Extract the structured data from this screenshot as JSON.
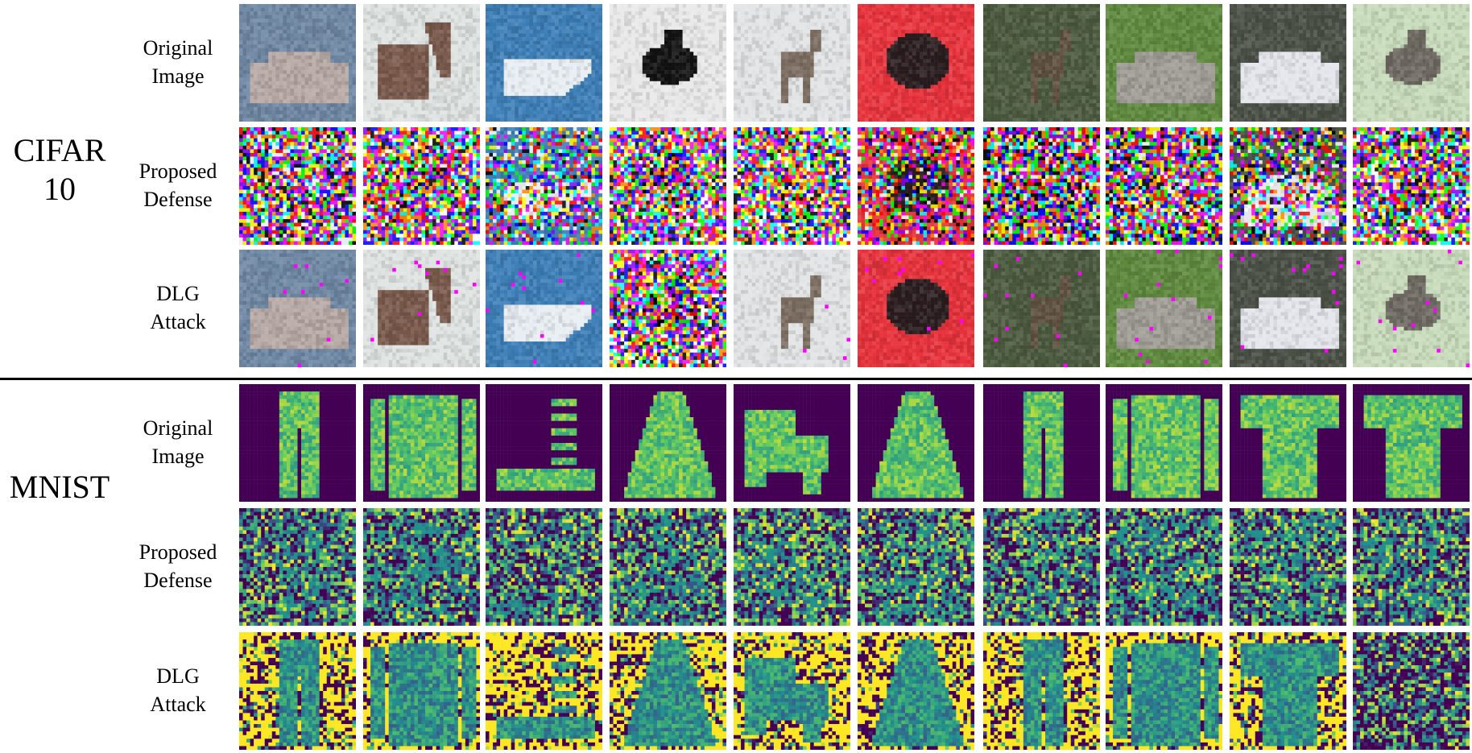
{
  "figure": {
    "datasets": [
      {
        "name_lines": [
          "CIFAR",
          "10"
        ],
        "kind": "cifar",
        "rows": [
          {
            "label_lines": [
              "Original",
              "Image"
            ],
            "mode": "original"
          },
          {
            "label_lines": [
              "Proposed",
              "Defense"
            ],
            "mode": "defense"
          },
          {
            "label_lines": [
              "DLG",
              "Attack"
            ],
            "mode": "attack"
          }
        ],
        "samples": [
          {
            "depicts": "car",
            "background": "#6f88a4",
            "subject": "#b7a9a6",
            "attack_recovered": true
          },
          {
            "depicts": "truck",
            "background": "#dfe4e3",
            "subject": "#7a5a4c",
            "attack_recovered": true
          },
          {
            "depicts": "ship",
            "background": "#3d7fb8",
            "subject": "#e8eef3",
            "attack_recovered": true
          },
          {
            "depicts": "bird",
            "background": "#e9e9e9",
            "subject": "#111111",
            "attack_recovered": false
          },
          {
            "depicts": "deer",
            "background": "#e2e4e6",
            "subject": "#7d6f62",
            "attack_recovered": true
          },
          {
            "depicts": "frog",
            "background": "#e8323c",
            "subject": "#2a1c1e",
            "attack_recovered": true
          },
          {
            "depicts": "deer",
            "background": "#4b5a3e",
            "subject": "#5e5040",
            "attack_recovered": true
          },
          {
            "depicts": "automobile",
            "background": "#5f8a3e",
            "subject": "#a09d96",
            "attack_recovered": true
          },
          {
            "depicts": "automobile",
            "background": "#4a5046",
            "subject": "#e4e6ec",
            "attack_recovered": true
          },
          {
            "depicts": "bird",
            "background": "#c9dcbc",
            "subject": "#6f6b63",
            "attack_recovered": true
          }
        ]
      },
      {
        "name_lines": [
          "MNIST"
        ],
        "kind": "mnist",
        "rows": [
          {
            "label_lines": [
              "Original",
              "Image"
            ],
            "mode": "original"
          },
          {
            "label_lines": [
              "Proposed",
              "Defense"
            ],
            "mode": "defense"
          },
          {
            "label_lines": [
              "DLG",
              "Attack"
            ],
            "mode": "attack"
          }
        ],
        "samples": [
          {
            "depicts": "trouser",
            "attack_recovered": true
          },
          {
            "depicts": "shirt",
            "attack_recovered": true
          },
          {
            "depicts": "sandal",
            "attack_recovered": true
          },
          {
            "depicts": "dress",
            "attack_recovered": true
          },
          {
            "depicts": "ankle-boot",
            "attack_recovered": true
          },
          {
            "depicts": "dress",
            "attack_recovered": true
          },
          {
            "depicts": "trouser",
            "attack_recovered": true
          },
          {
            "depicts": "shirt",
            "attack_recovered": true
          },
          {
            "depicts": "t-shirt",
            "attack_recovered": true
          },
          {
            "depicts": "t-shirt",
            "attack_recovered": false
          }
        ]
      }
    ],
    "viridis": [
      "#440154",
      "#3b528b",
      "#21918c",
      "#5ec962",
      "#fde725"
    ]
  }
}
